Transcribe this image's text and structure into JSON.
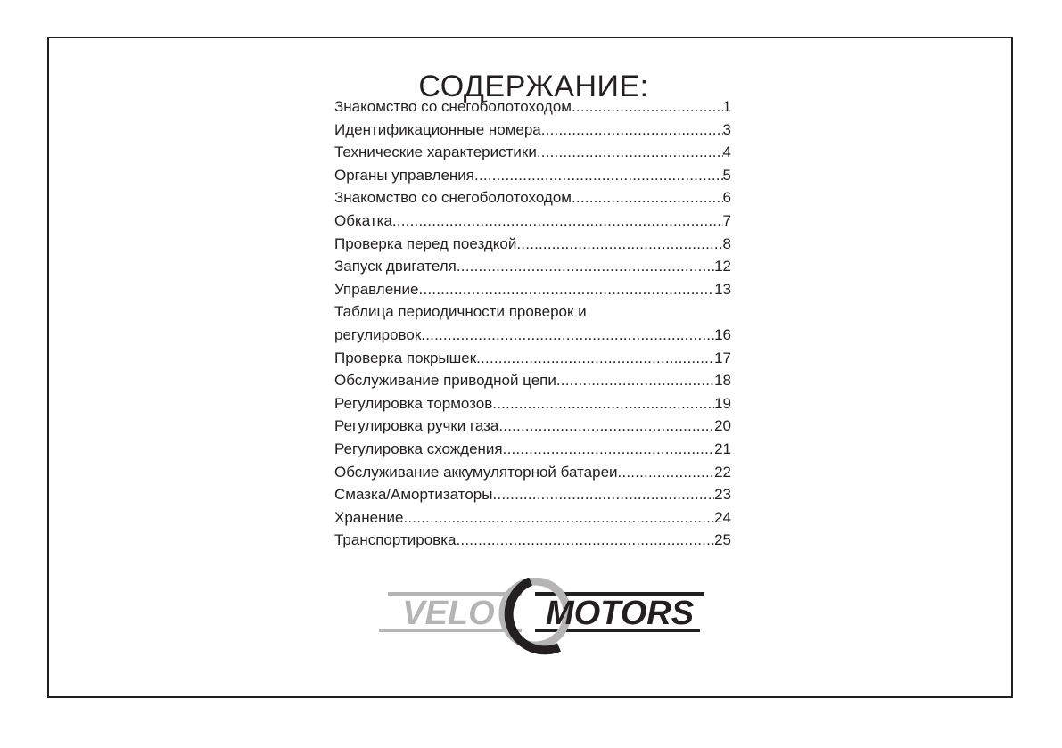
{
  "title": "СОДЕРЖАНИЕ:",
  "entries": [
    {
      "title": "Знакомство со снегоболотоходом",
      "page": "1"
    },
    {
      "title": "Идентификационные номера",
      "page": "3"
    },
    {
      "title": "Технические характеристики",
      "page": "4"
    },
    {
      "title": "Органы управления",
      "page": "5"
    },
    {
      "title": "Знакомство со снегоболотоходом",
      "page": "6"
    },
    {
      "title": "Обкатка",
      "page": "7"
    },
    {
      "title": "Проверка перед поездкой",
      "page": "8"
    },
    {
      "title": "Запуск двигателя",
      "page": "12"
    },
    {
      "title": "Управление",
      "page": "13"
    },
    {
      "title": "Таблица периодичности проверок и",
      "continuation": "регулировок",
      "page": "16"
    },
    {
      "title": "Проверка покрышек",
      "page": "17"
    },
    {
      "title": "Обслуживание приводной цепи",
      "page": "18"
    },
    {
      "title": "Регулировка тормозов",
      "page": "19"
    },
    {
      "title": "Регулировка ручки газа",
      "page": "20"
    },
    {
      "title": "Регулировка схождения",
      "page": "21"
    },
    {
      "title": "Обслуживание аккумуляторной батареи",
      "page": "22"
    },
    {
      "title": "Смазка/Амортизаторы",
      "page": "23"
    },
    {
      "title": "Хранение",
      "page": "24"
    },
    {
      "title": "Транспортировка",
      "page": "25"
    }
  ],
  "logo": {
    "text_left": "VELO",
    "text_right": "MOTORS",
    "color_light": "#b5b5b5",
    "color_dark": "#231f20"
  }
}
